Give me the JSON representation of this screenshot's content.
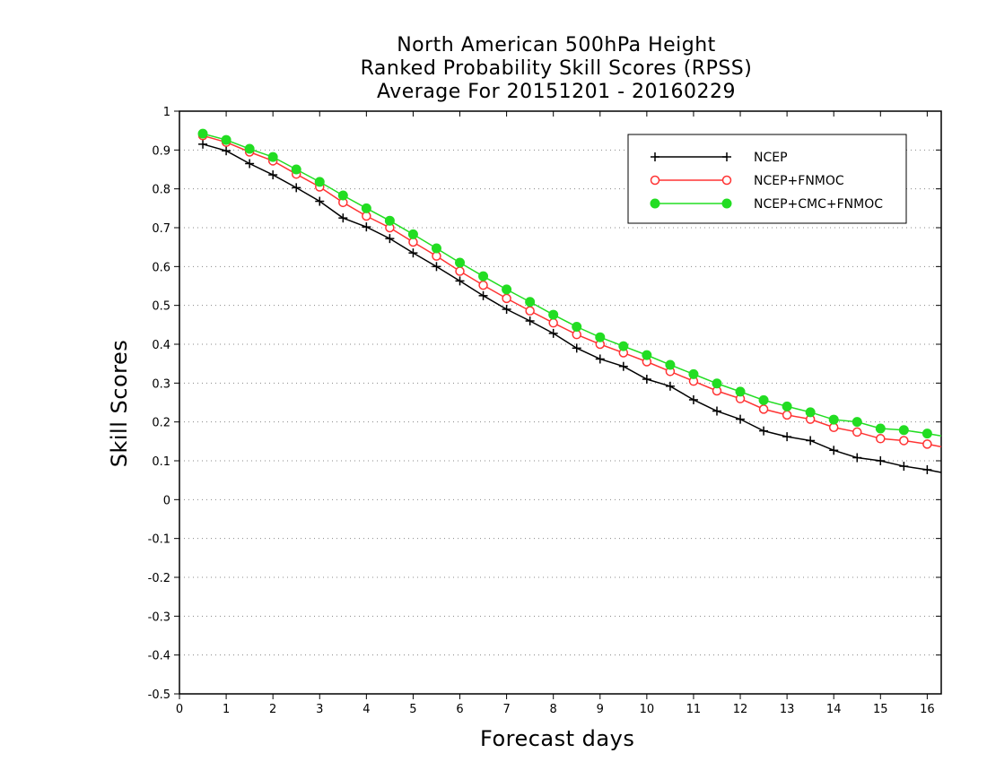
{
  "chart_data": {
    "type": "line",
    "title": [
      "North American 500hPa Height",
      "Ranked Probability Skill Scores (RPSS)",
      "Average For 20151201 - 20160229"
    ],
    "xlabel": "Forecast days",
    "ylabel": "Skill Scores",
    "xlim": [
      0,
      16.3
    ],
    "ylim": [
      -0.5,
      1
    ],
    "xticks": [
      "0",
      "1",
      "2",
      "3",
      "4",
      "5",
      "6",
      "7",
      "8",
      "9",
      "10",
      "11",
      "12",
      "13",
      "14",
      "15",
      "16"
    ],
    "yticks": [
      "-0.5",
      "-0.4",
      "-0.3",
      "-0.2",
      "-0.1",
      "0",
      "0.1",
      "0.2",
      "0.3",
      "0.4",
      "0.5",
      "0.6",
      "0.7",
      "0.8",
      "0.9",
      "1"
    ],
    "grid": "horizontal dotted",
    "legend_position": "top-right",
    "x": [
      0.5,
      1,
      1.5,
      2,
      2.5,
      3,
      3.5,
      4,
      4.5,
      5,
      5.5,
      6,
      6.5,
      7,
      7.5,
      8,
      8.5,
      9,
      9.5,
      10,
      10.5,
      11,
      11.5,
      12,
      12.5,
      13,
      13.5,
      14,
      14.5,
      15,
      15.5,
      16,
      16.3
    ],
    "series": [
      {
        "name": "NCEP",
        "color": "#000000",
        "marker": "plus",
        "values": [
          0.915,
          0.898,
          0.865,
          0.836,
          0.803,
          0.768,
          0.725,
          0.702,
          0.672,
          0.635,
          0.6,
          0.563,
          0.525,
          0.49,
          0.46,
          0.428,
          0.39,
          0.362,
          0.343,
          0.31,
          0.292,
          0.257,
          0.228,
          0.207,
          0.177,
          0.162,
          0.152,
          0.127,
          0.108,
          0.1,
          0.086,
          0.077,
          0.07
        ]
      },
      {
        "name": "NCEP+FNMOC",
        "color": "#ff3333",
        "marker": "open-circle",
        "values": [
          0.937,
          0.92,
          0.895,
          0.872,
          0.838,
          0.805,
          0.765,
          0.73,
          0.7,
          0.663,
          0.627,
          0.588,
          0.552,
          0.518,
          0.486,
          0.455,
          0.425,
          0.4,
          0.378,
          0.355,
          0.33,
          0.305,
          0.28,
          0.26,
          0.233,
          0.218,
          0.207,
          0.186,
          0.174,
          0.157,
          0.152,
          0.143,
          0.136
        ]
      },
      {
        "name": "NCEP+CMC+FNMOC",
        "color": "#22dd22",
        "marker": "filled-circle",
        "values": [
          0.942,
          0.926,
          0.903,
          0.882,
          0.85,
          0.818,
          0.783,
          0.75,
          0.718,
          0.683,
          0.647,
          0.61,
          0.575,
          0.541,
          0.509,
          0.476,
          0.445,
          0.418,
          0.395,
          0.372,
          0.347,
          0.323,
          0.299,
          0.278,
          0.256,
          0.24,
          0.225,
          0.206,
          0.2,
          0.183,
          0.179,
          0.17,
          0.164
        ]
      }
    ]
  }
}
